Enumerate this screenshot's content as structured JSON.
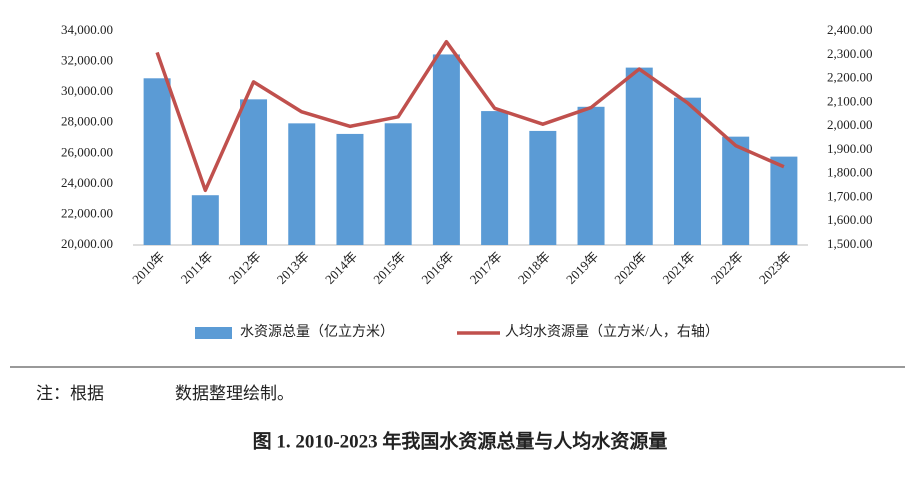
{
  "chart_data": {
    "type": "bar-line",
    "categories": [
      "2010年",
      "2011年",
      "2012年",
      "2013年",
      "2014年",
      "2015年",
      "2016年",
      "2017年",
      "2018年",
      "2019年",
      "2020年",
      "2021年",
      "2022年",
      "2023年"
    ],
    "series": [
      {
        "name": "水资源总量（亿立方米）",
        "type": "bar",
        "color": "#5b9bd5",
        "values": [
          30906,
          23257,
          29529,
          27958,
          27267,
          27963,
          32466,
          28761,
          27463,
          29041,
          31605,
          29638,
          27088,
          25782
        ]
      },
      {
        "name": "人均水资源量（立方米/人，右轴）",
        "type": "line",
        "axis": "y2",
        "color": "#c0504d",
        "values": [
          2310,
          1730,
          2186,
          2060,
          1999,
          2039,
          2355,
          2075,
          2008,
          2078,
          2240,
          2098,
          1918,
          1829
        ]
      }
    ],
    "ylim": [
      20000,
      34000
    ],
    "yticks": [
      {
        "value": 20000,
        "label": "20,000.00"
      },
      {
        "value": 22000,
        "label": "22,000.00"
      },
      {
        "value": 24000,
        "label": "24,000.00"
      },
      {
        "value": 26000,
        "label": "26,000.00"
      },
      {
        "value": 28000,
        "label": "28,000.00"
      },
      {
        "value": 30000,
        "label": "30,000.00"
      },
      {
        "value": 32000,
        "label": "32,000.00"
      },
      {
        "value": 34000,
        "label": "34,000.00"
      }
    ],
    "y2lim": [
      1500,
      2400
    ],
    "y2ticks": [
      {
        "value": 1500,
        "label": "1,500.00"
      },
      {
        "value": 1600,
        "label": "1,600.00"
      },
      {
        "value": 1700,
        "label": "1,700.00"
      },
      {
        "value": 1800,
        "label": "1,800.00"
      },
      {
        "value": 1900,
        "label": "1,900.00"
      },
      {
        "value": 2000,
        "label": "2,000.00"
      },
      {
        "value": 2100,
        "label": "2,100.00"
      },
      {
        "value": 2200,
        "label": "2,200.00"
      },
      {
        "value": 2300,
        "label": "2,300.00"
      },
      {
        "value": 2400,
        "label": "2,400.00"
      }
    ],
    "legend": "bottom",
    "notes": [
      "注：根据",
      "数据整理绘制。"
    ],
    "caption": "图 1. 2010-2023 年我国水资源总量与人均水资源量"
  }
}
